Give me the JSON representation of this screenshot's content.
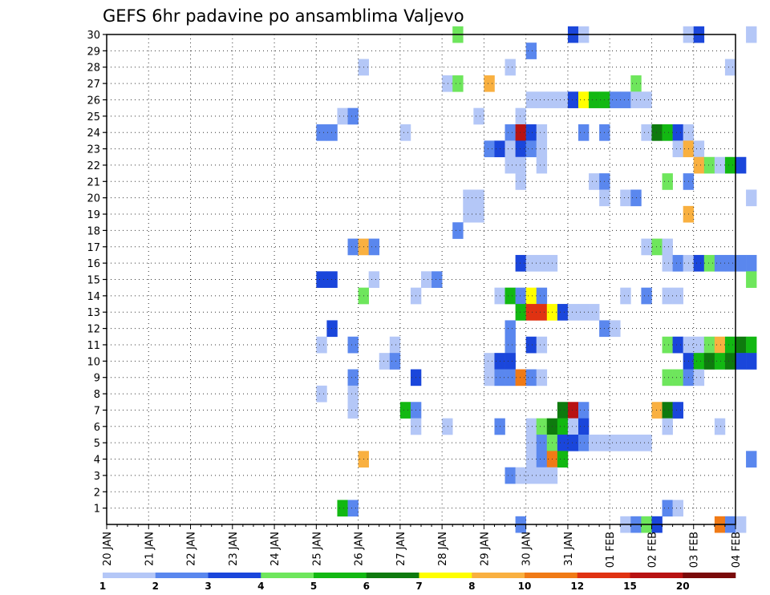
{
  "chart_data": {
    "type": "heatmap",
    "title": "GEFS 6hr padavine po ansamblima Valjevo",
    "x_tick_labels": [
      "20 JAN",
      "21 JAN",
      "22 JAN",
      "23 JAN",
      "24 JAN",
      "25 JAN",
      "26 JAN",
      "27 JAN",
      "28 JAN",
      "29 JAN",
      "30 JAN",
      "31 JAN",
      "01 FEB",
      "02 FEB",
      "03 FEB",
      "04 FEB"
    ],
    "y_tick_labels": [
      "1",
      "2",
      "3",
      "4",
      "5",
      "6",
      "7",
      "8",
      "9",
      "10",
      "11",
      "12",
      "13",
      "14",
      "15",
      "16",
      "17",
      "18",
      "19",
      "20",
      "21",
      "22",
      "23",
      "24",
      "25",
      "26",
      "27",
      "28",
      "29",
      "30"
    ],
    "ylim": [
      0,
      30
    ],
    "time_steps_per_day": 4,
    "colorbar": {
      "labels": [
        "1",
        "2",
        "3",
        "4",
        "5",
        "6",
        "7",
        "8",
        "10",
        "12",
        "15",
        "20"
      ],
      "colors": [
        "#b4c7f7",
        "#5a87ee",
        "#1a46db",
        "#6ee65c",
        "#12b812",
        "#0e7a0e",
        "#ffff00",
        "#f9b040",
        "#f07a16",
        "#e03212",
        "#b81212",
        "#7a0a0a"
      ]
    },
    "cells": [
      {
        "m": 30,
        "t": 33,
        "c": 4
      },
      {
        "m": 30,
        "t": 44,
        "c": 3
      },
      {
        "m": 30,
        "t": 45,
        "c": 1
      },
      {
        "m": 30,
        "t": 55,
        "c": 1
      },
      {
        "m": 30,
        "t": 56,
        "c": 3
      },
      {
        "m": 30,
        "t": 61,
        "c": 1
      },
      {
        "m": 29,
        "t": 40,
        "c": 2
      },
      {
        "m": 28,
        "t": 24,
        "c": 1
      },
      {
        "m": 28,
        "t": 38,
        "c": 1
      },
      {
        "m": 28,
        "t": 59,
        "c": 1
      },
      {
        "m": 27,
        "t": 32,
        "c": 1
      },
      {
        "m": 27,
        "t": 33,
        "c": 4
      },
      {
        "m": 27,
        "t": 36,
        "c": 8
      },
      {
        "m": 27,
        "t": 50,
        "c": 4
      },
      {
        "m": 26,
        "t": 40,
        "c": 1
      },
      {
        "m": 26,
        "t": 41,
        "c": 1
      },
      {
        "m": 26,
        "t": 42,
        "c": 1
      },
      {
        "m": 26,
        "t": 43,
        "c": 1
      },
      {
        "m": 26,
        "t": 44,
        "c": 3
      },
      {
        "m": 26,
        "t": 45,
        "c": 7
      },
      {
        "m": 26,
        "t": 46,
        "c": 5
      },
      {
        "m": 26,
        "t": 47,
        "c": 5
      },
      {
        "m": 26,
        "t": 48,
        "c": 2
      },
      {
        "m": 26,
        "t": 49,
        "c": 2
      },
      {
        "m": 26,
        "t": 50,
        "c": 1
      },
      {
        "m": 26,
        "t": 51,
        "c": 1
      },
      {
        "m": 25,
        "t": 22,
        "c": 1
      },
      {
        "m": 25,
        "t": 23,
        "c": 2
      },
      {
        "m": 25,
        "t": 35,
        "c": 1
      },
      {
        "m": 25,
        "t": 39,
        "c": 1
      },
      {
        "m": 24,
        "t": 20,
        "c": 2
      },
      {
        "m": 24,
        "t": 21,
        "c": 2
      },
      {
        "m": 24,
        "t": 28,
        "c": 1
      },
      {
        "m": 24,
        "t": 38,
        "c": 2
      },
      {
        "m": 24,
        "t": 39,
        "c": 11
      },
      {
        "m": 24,
        "t": 40,
        "c": 3
      },
      {
        "m": 24,
        "t": 41,
        "c": 1
      },
      {
        "m": 24,
        "t": 45,
        "c": 2
      },
      {
        "m": 24,
        "t": 47,
        "c": 2
      },
      {
        "m": 24,
        "t": 51,
        "c": 1
      },
      {
        "m": 24,
        "t": 52,
        "c": 6
      },
      {
        "m": 24,
        "t": 53,
        "c": 5
      },
      {
        "m": 24,
        "t": 54,
        "c": 3
      },
      {
        "m": 24,
        "t": 55,
        "c": 1
      },
      {
        "m": 23,
        "t": 36,
        "c": 2
      },
      {
        "m": 23,
        "t": 37,
        "c": 3
      },
      {
        "m": 23,
        "t": 38,
        "c": 1
      },
      {
        "m": 23,
        "t": 39,
        "c": 3
      },
      {
        "m": 23,
        "t": 40,
        "c": 2
      },
      {
        "m": 23,
        "t": 41,
        "c": 1
      },
      {
        "m": 23,
        "t": 54,
        "c": 1
      },
      {
        "m": 23,
        "t": 55,
        "c": 8
      },
      {
        "m": 23,
        "t": 56,
        "c": 1
      },
      {
        "m": 22,
        "t": 38,
        "c": 1
      },
      {
        "m": 22,
        "t": 39,
        "c": 1
      },
      {
        "m": 22,
        "t": 41,
        "c": 1
      },
      {
        "m": 22,
        "t": 56,
        "c": 8
      },
      {
        "m": 22,
        "t": 57,
        "c": 4
      },
      {
        "m": 22,
        "t": 58,
        "c": 1
      },
      {
        "m": 22,
        "t": 59,
        "c": 5
      },
      {
        "m": 22,
        "t": 60,
        "c": 3
      },
      {
        "m": 21,
        "t": 39,
        "c": 1
      },
      {
        "m": 21,
        "t": 46,
        "c": 1
      },
      {
        "m": 21,
        "t": 47,
        "c": 2
      },
      {
        "m": 21,
        "t": 53,
        "c": 4
      },
      {
        "m": 21,
        "t": 55,
        "c": 2
      },
      {
        "m": 20,
        "t": 34,
        "c": 1
      },
      {
        "m": 20,
        "t": 35,
        "c": 1
      },
      {
        "m": 20,
        "t": 47,
        "c": 1
      },
      {
        "m": 20,
        "t": 49,
        "c": 1
      },
      {
        "m": 20,
        "t": 50,
        "c": 2
      },
      {
        "m": 20,
        "t": 61,
        "c": 1
      },
      {
        "m": 19,
        "t": 34,
        "c": 1
      },
      {
        "m": 19,
        "t": 35,
        "c": 1
      },
      {
        "m": 19,
        "t": 55,
        "c": 8
      },
      {
        "m": 18,
        "t": 33,
        "c": 2
      },
      {
        "m": 17,
        "t": 23,
        "c": 2
      },
      {
        "m": 17,
        "t": 24,
        "c": 8
      },
      {
        "m": 17,
        "t": 25,
        "c": 2
      },
      {
        "m": 17,
        "t": 51,
        "c": 1
      },
      {
        "m": 17,
        "t": 52,
        "c": 4
      },
      {
        "m": 17,
        "t": 53,
        "c": 1
      },
      {
        "m": 16,
        "t": 39,
        "c": 3
      },
      {
        "m": 16,
        "t": 40,
        "c": 1
      },
      {
        "m": 16,
        "t": 41,
        "c": 1
      },
      {
        "m": 16,
        "t": 42,
        "c": 1
      },
      {
        "m": 16,
        "t": 53,
        "c": 1
      },
      {
        "m": 16,
        "t": 54,
        "c": 2
      },
      {
        "m": 16,
        "t": 55,
        "c": 1
      },
      {
        "m": 16,
        "t": 56,
        "c": 3
      },
      {
        "m": 16,
        "t": 57,
        "c": 4
      },
      {
        "m": 16,
        "t": 58,
        "c": 2
      },
      {
        "m": 16,
        "t": 59,
        "c": 2
      },
      {
        "m": 16,
        "t": 60,
        "c": 2
      },
      {
        "m": 16,
        "t": 61,
        "c": 2
      },
      {
        "m": 15,
        "t": 20,
        "c": 3
      },
      {
        "m": 15,
        "t": 21,
        "c": 3
      },
      {
        "m": 15,
        "t": 25,
        "c": 1
      },
      {
        "m": 15,
        "t": 30,
        "c": 1
      },
      {
        "m": 15,
        "t": 31,
        "c": 2
      },
      {
        "m": 15,
        "t": 61,
        "c": 4
      },
      {
        "m": 14,
        "t": 24,
        "c": 4
      },
      {
        "m": 14,
        "t": 29,
        "c": 1
      },
      {
        "m": 14,
        "t": 37,
        "c": 1
      },
      {
        "m": 14,
        "t": 38,
        "c": 5
      },
      {
        "m": 14,
        "t": 39,
        "c": 2
      },
      {
        "m": 14,
        "t": 40,
        "c": 7
      },
      {
        "m": 14,
        "t": 41,
        "c": 2
      },
      {
        "m": 14,
        "t": 49,
        "c": 1
      },
      {
        "m": 14,
        "t": 51,
        "c": 2
      },
      {
        "m": 14,
        "t": 53,
        "c": 1
      },
      {
        "m": 14,
        "t": 54,
        "c": 1
      },
      {
        "m": 13,
        "t": 39,
        "c": 5
      },
      {
        "m": 13,
        "t": 40,
        "c": 10
      },
      {
        "m": 13,
        "t": 41,
        "c": 10
      },
      {
        "m": 13,
        "t": 42,
        "c": 7
      },
      {
        "m": 13,
        "t": 43,
        "c": 3
      },
      {
        "m": 13,
        "t": 44,
        "c": 1
      },
      {
        "m": 13,
        "t": 45,
        "c": 1
      },
      {
        "m": 13,
        "t": 46,
        "c": 1
      },
      {
        "m": 12,
        "t": 21,
        "c": 3
      },
      {
        "m": 12,
        "t": 38,
        "c": 2
      },
      {
        "m": 12,
        "t": 47,
        "c": 2
      },
      {
        "m": 12,
        "t": 48,
        "c": 1
      },
      {
        "m": 11,
        "t": 20,
        "c": 1
      },
      {
        "m": 11,
        "t": 23,
        "c": 2
      },
      {
        "m": 11,
        "t": 27,
        "c": 1
      },
      {
        "m": 11,
        "t": 38,
        "c": 2
      },
      {
        "m": 11,
        "t": 40,
        "c": 3
      },
      {
        "m": 11,
        "t": 41,
        "c": 1
      },
      {
        "m": 11,
        "t": 53,
        "c": 4
      },
      {
        "m": 11,
        "t": 54,
        "c": 3
      },
      {
        "m": 11,
        "t": 55,
        "c": 1
      },
      {
        "m": 11,
        "t": 56,
        "c": 1
      },
      {
        "m": 11,
        "t": 57,
        "c": 4
      },
      {
        "m": 11,
        "t": 58,
        "c": 8
      },
      {
        "m": 11,
        "t": 59,
        "c": 5
      },
      {
        "m": 11,
        "t": 60,
        "c": 6
      },
      {
        "m": 11,
        "t": 61,
        "c": 5
      },
      {
        "m": 10,
        "t": 26,
        "c": 1
      },
      {
        "m": 10,
        "t": 27,
        "c": 2
      },
      {
        "m": 10,
        "t": 36,
        "c": 1
      },
      {
        "m": 10,
        "t": 37,
        "c": 3
      },
      {
        "m": 10,
        "t": 38,
        "c": 3
      },
      {
        "m": 10,
        "t": 55,
        "c": 3
      },
      {
        "m": 10,
        "t": 56,
        "c": 5
      },
      {
        "m": 10,
        "t": 57,
        "c": 6
      },
      {
        "m": 10,
        "t": 58,
        "c": 5
      },
      {
        "m": 10,
        "t": 59,
        "c": 6
      },
      {
        "m": 10,
        "t": 60,
        "c": 3
      },
      {
        "m": 10,
        "t": 61,
        "c": 3
      },
      {
        "m": 9,
        "t": 23,
        "c": 2
      },
      {
        "m": 9,
        "t": 29,
        "c": 3
      },
      {
        "m": 9,
        "t": 36,
        "c": 1
      },
      {
        "m": 9,
        "t": 37,
        "c": 2
      },
      {
        "m": 9,
        "t": 38,
        "c": 2
      },
      {
        "m": 9,
        "t": 39,
        "c": 9
      },
      {
        "m": 9,
        "t": 40,
        "c": 2
      },
      {
        "m": 9,
        "t": 41,
        "c": 1
      },
      {
        "m": 9,
        "t": 53,
        "c": 4
      },
      {
        "m": 9,
        "t": 54,
        "c": 4
      },
      {
        "m": 9,
        "t": 55,
        "c": 2
      },
      {
        "m": 9,
        "t": 56,
        "c": 1
      },
      {
        "m": 8,
        "t": 20,
        "c": 1
      },
      {
        "m": 8,
        "t": 23,
        "c": 1
      },
      {
        "m": 7,
        "t": 23,
        "c": 1
      },
      {
        "m": 7,
        "t": 28,
        "c": 5
      },
      {
        "m": 7,
        "t": 29,
        "c": 2
      },
      {
        "m": 7,
        "t": 43,
        "c": 6
      },
      {
        "m": 7,
        "t": 44,
        "c": 11
      },
      {
        "m": 7,
        "t": 45,
        "c": 2
      },
      {
        "m": 7,
        "t": 52,
        "c": 8
      },
      {
        "m": 7,
        "t": 53,
        "c": 6
      },
      {
        "m": 7,
        "t": 54,
        "c": 3
      },
      {
        "m": 6,
        "t": 29,
        "c": 1
      },
      {
        "m": 6,
        "t": 32,
        "c": 1
      },
      {
        "m": 6,
        "t": 37,
        "c": 2
      },
      {
        "m": 6,
        "t": 40,
        "c": 1
      },
      {
        "m": 6,
        "t": 41,
        "c": 4
      },
      {
        "m": 6,
        "t": 42,
        "c": 6
      },
      {
        "m": 6,
        "t": 43,
        "c": 5
      },
      {
        "m": 6,
        "t": 44,
        "c": 1
      },
      {
        "m": 6,
        "t": 45,
        "c": 3
      },
      {
        "m": 6,
        "t": 53,
        "c": 1
      },
      {
        "m": 6,
        "t": 58,
        "c": 1
      },
      {
        "m": 5,
        "t": 40,
        "c": 1
      },
      {
        "m": 5,
        "t": 41,
        "c": 2
      },
      {
        "m": 5,
        "t": 42,
        "c": 4
      },
      {
        "m": 5,
        "t": 43,
        "c": 3
      },
      {
        "m": 5,
        "t": 44,
        "c": 3
      },
      {
        "m": 5,
        "t": 45,
        "c": 2
      },
      {
        "m": 5,
        "t": 46,
        "c": 1
      },
      {
        "m": 5,
        "t": 47,
        "c": 1
      },
      {
        "m": 5,
        "t": 48,
        "c": 1
      },
      {
        "m": 5,
        "t": 49,
        "c": 1
      },
      {
        "m": 5,
        "t": 50,
        "c": 1
      },
      {
        "m": 5,
        "t": 51,
        "c": 1
      },
      {
        "m": 4,
        "t": 24,
        "c": 8
      },
      {
        "m": 4,
        "t": 40,
        "c": 1
      },
      {
        "m": 4,
        "t": 41,
        "c": 2
      },
      {
        "m": 4,
        "t": 42,
        "c": 9
      },
      {
        "m": 4,
        "t": 43,
        "c": 5
      },
      {
        "m": 4,
        "t": 61,
        "c": 2
      },
      {
        "m": 3,
        "t": 38,
        "c": 2
      },
      {
        "m": 3,
        "t": 39,
        "c": 1
      },
      {
        "m": 3,
        "t": 40,
        "c": 1
      },
      {
        "m": 3,
        "t": 41,
        "c": 1
      },
      {
        "m": 3,
        "t": 42,
        "c": 1
      },
      {
        "m": 1,
        "t": 22,
        "c": 5
      },
      {
        "m": 1,
        "t": 23,
        "c": 2
      },
      {
        "m": 1,
        "t": 53,
        "c": 2
      },
      {
        "m": 1,
        "t": 54,
        "c": 1
      },
      {
        "m": 0,
        "t": 39,
        "c": 2
      },
      {
        "m": 0,
        "t": 49,
        "c": 1
      },
      {
        "m": 0,
        "t": 50,
        "c": 2
      },
      {
        "m": 0,
        "t": 51,
        "c": 4
      },
      {
        "m": 0,
        "t": 52,
        "c": 3
      },
      {
        "m": 0,
        "t": 58,
        "c": 9
      },
      {
        "m": 0,
        "t": 59,
        "c": 2
      },
      {
        "m": 0,
        "t": 60,
        "c": 1
      }
    ]
  }
}
